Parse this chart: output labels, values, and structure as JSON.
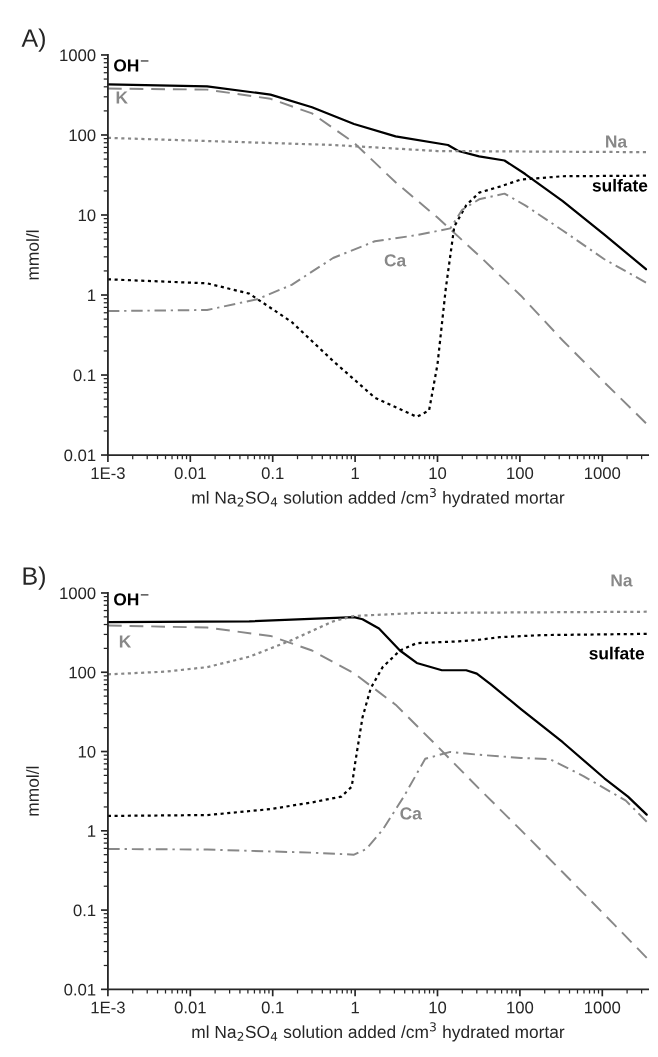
{
  "chart_data": [
    {
      "type": "line",
      "title": "A)",
      "xlabel": "ml Na$_{2}$SO$_{4}$ solution added /cm$^{3}$ hydrated mortar",
      "ylabel": "mmol/l",
      "log": "xy",
      "grid": false,
      "legend": false,
      "xlim": [
        0.001,
        3600
      ],
      "ylim": [
        0.01,
        1000
      ],
      "xticks": [
        {
          "value": 0.001,
          "label": "1E-3"
        },
        0.01,
        0.1,
        1,
        10,
        100,
        1000
      ],
      "yticks": [
        0.01,
        0.1,
        1,
        10,
        100,
        1000
      ],
      "series": [
        {
          "name": "OH$^{−}$",
          "color": "#000000",
          "line_style": "solid",
          "x": [
            0.001,
            0.016,
            0.094,
            0.3,
            0.97,
            3.1,
            13.4,
            17.9,
            32,
            65,
            116,
            331,
            1060,
            3390
          ],
          "values": [
            430,
            406,
            319,
            222,
            137,
            96,
            75,
            63,
            54,
            48,
            32.5,
            14.9,
            5.7,
            2.1
          ]
        },
        {
          "name": "K",
          "color": "#888888",
          "line_style": "dashed",
          "x": [
            0.001,
            0.016,
            0.094,
            0.3,
            0.97,
            3.1,
            10,
            32,
            103,
            331,
            1060,
            3390
          ],
          "values": [
            380,
            369,
            283,
            186,
            80,
            25.6,
            9.3,
            3.1,
            0.98,
            0.27,
            0.081,
            0.025
          ]
        },
        {
          "name": "Na",
          "color": "#888888",
          "line_style": "dotted",
          "x": [
            0.001,
            0.54,
            10,
            3390
          ],
          "values": [
            92,
            75,
            63,
            61
          ]
        },
        {
          "name": "sulfate",
          "color": "#000000",
          "line_style": "dotted",
          "x": [
            0.001,
            0.016,
            0.052,
            0.17,
            0.54,
            1.74,
            5.6,
            7.9,
            10,
            12.6,
            16,
            22.3,
            32,
            57,
            103,
            331,
            3390
          ],
          "values": [
            1.57,
            1.4,
            1.04,
            0.46,
            0.15,
            0.052,
            0.03,
            0.036,
            0.136,
            1.2,
            7.2,
            13.2,
            19,
            22.6,
            27.8,
            30.5,
            31
          ]
        },
        {
          "name": "Ca",
          "color": "#888888",
          "line_style": "dashdot",
          "x": [
            0.001,
            0.016,
            0.066,
            0.17,
            0.54,
            1.74,
            5.6,
            14.3,
            19.9,
            32,
            65,
            116,
            331,
            1060,
            3390
          ],
          "values": [
            0.63,
            0.65,
            0.89,
            1.34,
            2.9,
            4.7,
            5.6,
            6.8,
            11.6,
            15.7,
            18.5,
            13.2,
            6.4,
            2.8,
            1.43
          ]
        }
      ]
    },
    {
      "type": "line",
      "title": "B)",
      "xlabel": "ml Na$_{2}$SO$_{4}$ solution added /cm$^{3}$ hydrated mortar",
      "ylabel": "mmol/l",
      "log": "xy",
      "grid": false,
      "legend": false,
      "xlim": [
        0.001,
        3600
      ],
      "ylim": [
        0.01,
        1000
      ],
      "xticks": [
        {
          "value": 0.001,
          "label": "1E-3"
        },
        0.01,
        0.1,
        1,
        10,
        100,
        1000
      ],
      "yticks": [
        0.01,
        0.1,
        1,
        10,
        100,
        1000
      ],
      "series": [
        {
          "name": "OH$^{−}$",
          "color": "#000000",
          "line_style": "solid",
          "x": [
            0.001,
            0.052,
            0.97,
            1.23,
            1.95,
            3.5,
            5.6,
            11.3,
            22.3,
            30,
            44,
            103,
            331,
            1060,
            2050,
            3460
          ],
          "values": [
            428,
            438,
            495,
            466,
            357,
            188,
            131,
            106,
            106,
            96,
            71,
            34.3,
            13.1,
            4.6,
            2.7,
            1.6
          ]
        },
        {
          "name": "K",
          "color": "#888888",
          "line_style": "dashed",
          "x": [
            0.001,
            0.016,
            0.094,
            0.3,
            0.97,
            3.1,
            10,
            32,
            103,
            331,
            1390,
            3460
          ],
          "values": [
            389,
            366,
            287,
            188,
            97,
            39,
            11.6,
            3.4,
            1.02,
            0.3,
            0.066,
            0.025
          ]
        },
        {
          "name": "Na",
          "color": "#888888",
          "line_style": "dotted",
          "x": [
            0.001,
            0.0051,
            0.016,
            0.052,
            0.17,
            0.54,
            0.97,
            5.6,
            3460
          ],
          "values": [
            94,
            102,
            116,
            157,
            254,
            438,
            513,
            559,
            580
          ]
        },
        {
          "name": "sulfate",
          "color": "#000000",
          "line_style": "dotted",
          "x": [
            0.001,
            0.016,
            0.094,
            0.3,
            0.68,
            0.91,
            1.0,
            1.23,
            1.55,
            2.16,
            3.5,
            5.6,
            17.9,
            29,
            57,
            182,
            3460
          ],
          "values": [
            1.54,
            1.58,
            1.88,
            2.28,
            2.7,
            3.6,
            7.1,
            27,
            63,
            116,
            188,
            233,
            245,
            254,
            277,
            294,
            305
          ]
        },
        {
          "name": "Ca",
          "color": "#888888",
          "line_style": "dashdot",
          "x": [
            0.001,
            0.016,
            0.3,
            0.97,
            1.37,
            2.16,
            3.9,
            7.1,
            14.3,
            32,
            103,
            231,
            590,
            1930,
            3460
          ],
          "values": [
            0.59,
            0.58,
            0.53,
            0.5,
            0.59,
            1.03,
            2.7,
            8.1,
            9.9,
            9.1,
            8.3,
            8.0,
            4.9,
            2.4,
            1.3
          ]
        }
      ]
    }
  ]
}
